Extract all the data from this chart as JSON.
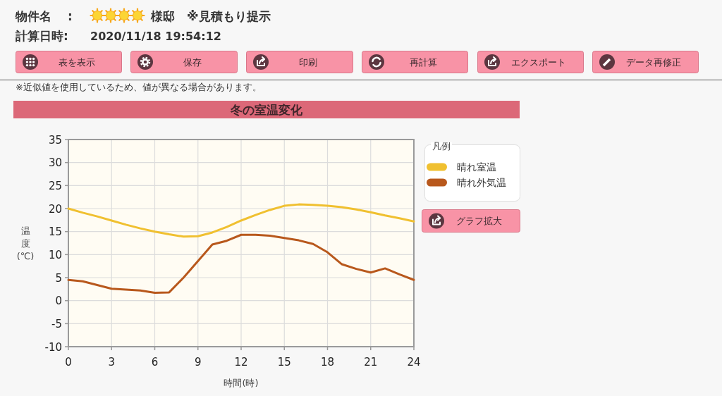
{
  "chart_data": {
    "type": "line",
    "title": "冬の室温変化",
    "xlabel": "時間(時)",
    "ylabel": "温度(℃)",
    "legend_title": "凡例",
    "x": [
      0,
      1,
      2,
      3,
      4,
      5,
      6,
      7,
      8,
      9,
      10,
      11,
      12,
      13,
      14,
      15,
      16,
      17,
      18,
      19,
      20,
      21,
      22,
      23,
      24
    ],
    "series": [
      {
        "name": "晴れ室温",
        "color": "#f0c030",
        "values": [
          20.0,
          19.1,
          18.3,
          17.4,
          16.5,
          15.7,
          15.0,
          14.4,
          13.9,
          14.0,
          14.8,
          16.0,
          17.4,
          18.6,
          19.7,
          20.6,
          20.9,
          20.8,
          20.6,
          20.3,
          19.8,
          19.2,
          18.5,
          17.9,
          17.2
        ]
      },
      {
        "name": "晴れ外気温",
        "color": "#b8581c",
        "values": [
          4.5,
          4.2,
          3.4,
          2.6,
          2.4,
          2.2,
          1.7,
          1.8,
          5.0,
          8.6,
          12.2,
          13.0,
          14.3,
          14.3,
          14.1,
          13.6,
          13.1,
          12.3,
          10.5,
          7.9,
          6.9,
          6.1,
          7.0,
          5.7,
          4.5
        ]
      }
    ],
    "xlim": [
      0,
      24
    ],
    "xticks": [
      0,
      3,
      6,
      9,
      12,
      15,
      18,
      21,
      24
    ],
    "ylim": [
      -10,
      35
    ],
    "yticks": [
      -10,
      -5,
      0,
      5,
      10,
      15,
      20,
      25,
      30,
      35
    ],
    "grid": true,
    "legend": "right",
    "annotations": [
      "物件名",
      ":",
      "様邸　※見積もり提示",
      "計算日時:",
      "2020/11/18 19:54:12",
      "表を表示",
      "保存",
      "印刷",
      "再計算",
      "エクスポート",
      "データ再修正",
      "※近似値を使用しているため、値が異なる場合があります。",
      "グラフ拡大"
    ]
  }
}
